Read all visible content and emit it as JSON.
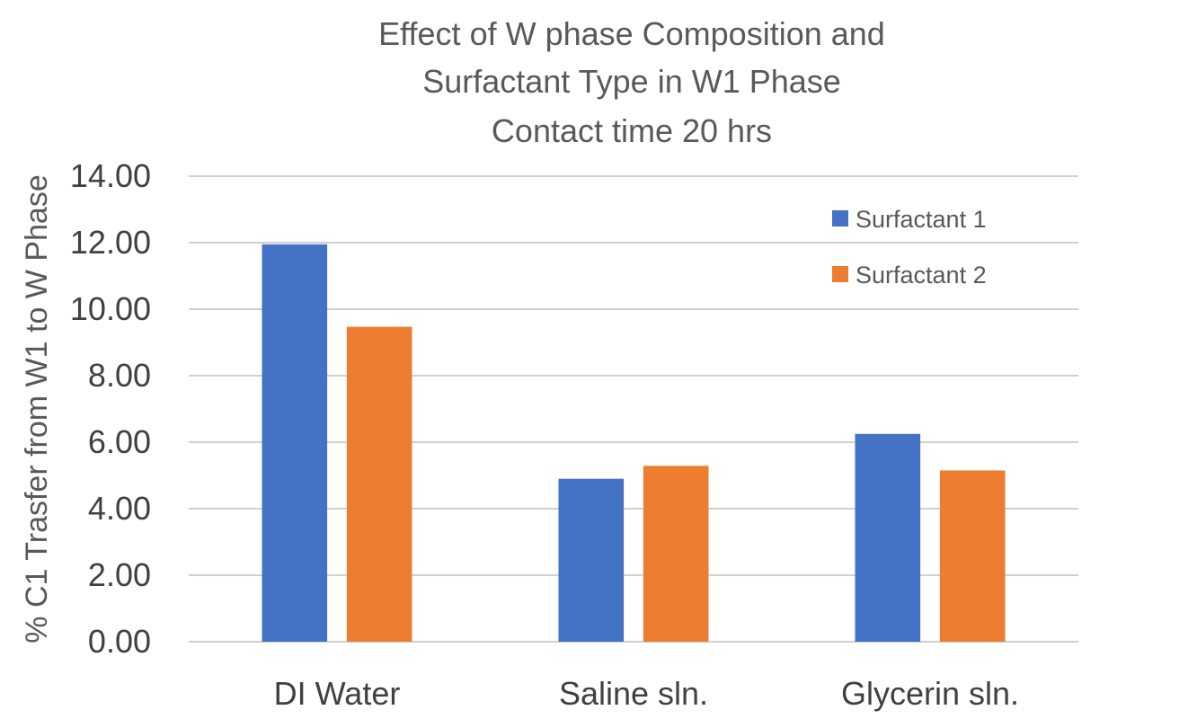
{
  "chart_data": {
    "type": "bar",
    "title": [
      "Effect of W phase Composition and",
      "Surfactant Type in W1 Phase",
      "Contact time 20 hrs"
    ],
    "xlabel": "",
    "ylabel": "% C1 Trasfer from W1 to W Phase",
    "categories": [
      "DI Water",
      "Saline sln.",
      "Glycerin sln."
    ],
    "series": [
      {
        "name": "Surfactant 1",
        "color": "#4472C4",
        "values": [
          11.95,
          4.9,
          6.25
        ]
      },
      {
        "name": "Surfactant 2",
        "color": "#ED7D31",
        "values": [
          9.47,
          5.29,
          5.15
        ]
      }
    ],
    "ylim": [
      0,
      14
    ],
    "yticks": [
      "0.00",
      "2.00",
      "4.00",
      "6.00",
      "8.00",
      "10.00",
      "12.00",
      "14.00"
    ],
    "grid": true,
    "legend_position": "top-right"
  }
}
